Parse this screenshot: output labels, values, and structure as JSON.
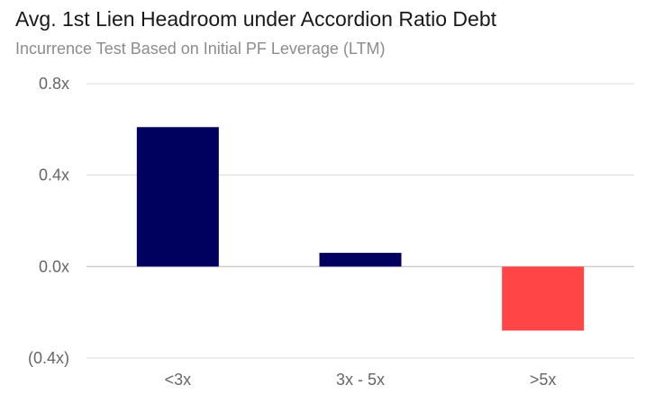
{
  "chart_data": {
    "type": "bar",
    "title": "Avg. 1st Lien Headroom under Accordion Ratio Debt",
    "subtitle": "Incurrence Test Based on Initial PF Leverage (LTM)",
    "categories": [
      "<3x",
      "3x - 5x",
      ">5x"
    ],
    "values": [
      0.61,
      0.06,
      -0.28
    ],
    "ylim": [
      -0.4,
      0.8
    ],
    "yticks": [
      0.8,
      0.4,
      0.0,
      -0.4
    ],
    "ytick_labels": [
      "0.8x",
      "0.4x",
      "0.0x",
      "(0.4x)"
    ],
    "xlabel": "",
    "ylabel": "",
    "grid": true,
    "colors": {
      "positive": "#00005e",
      "negative": "#ff4545",
      "grid": "#dcdcdc",
      "zero_line": "#cccccc"
    }
  }
}
